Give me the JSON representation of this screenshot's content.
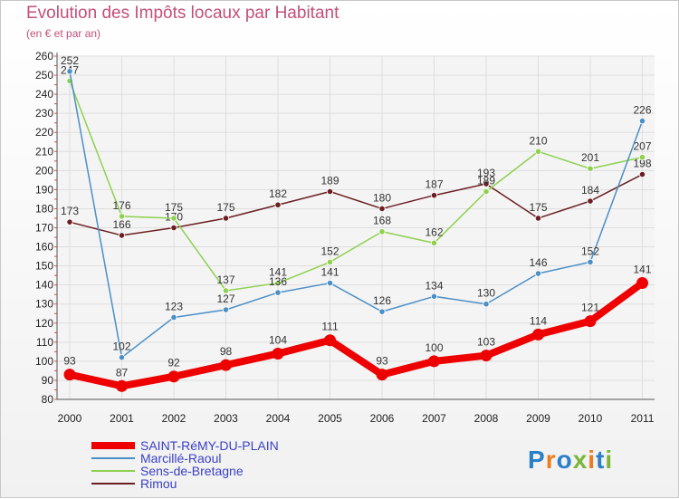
{
  "page": {
    "title": "Evolution des Impôts locaux par Habitant",
    "subtitle": "(en € et par an)"
  },
  "logo": {
    "text": "Proxiti",
    "colors": [
      "#2b7fc9",
      "#ee7c1f",
      "#2b7fc9",
      "#7ab637",
      "#ee7c1f",
      "#2b7fc9",
      "#7ab637"
    ]
  },
  "chart_data": {
    "type": "line",
    "title": "Evolution des Impôts locaux par Habitant",
    "subtitle": "(en € et par an)",
    "xlabel": "",
    "ylabel": "",
    "ylim": [
      80,
      260
    ],
    "yticks": [
      80,
      90,
      100,
      110,
      120,
      130,
      140,
      150,
      160,
      170,
      180,
      190,
      200,
      210,
      220,
      230,
      240,
      250,
      260
    ],
    "x": [
      "2000",
      "2001",
      "2002",
      "2003",
      "2004",
      "2005",
      "2006",
      "2007",
      "2008",
      "2009",
      "2010",
      "2011"
    ],
    "legend_position": "bottom-left",
    "series": [
      {
        "name": "Rimou",
        "color": "#6b1f22",
        "values": [
          173,
          166,
          170,
          175,
          182,
          189,
          180,
          187,
          193,
          175,
          184,
          198
        ]
      },
      {
        "name": "Sens-de-Bretagne",
        "color": "#8ed14f",
        "values": [
          247,
          176,
          175,
          137,
          141,
          152,
          168,
          162,
          189,
          210,
          201,
          207
        ]
      },
      {
        "name": "Marcillé-Raoul",
        "color": "#4b8fc6",
        "values": [
          252,
          102,
          123,
          127,
          136,
          141,
          126,
          134,
          130,
          146,
          152,
          226
        ]
      },
      {
        "name": "SAINT-RéMY-DU-PLAIN",
        "color": "#ee0000",
        "values": [
          93,
          87,
          92,
          98,
          104,
          111,
          93,
          100,
          103,
          114,
          121,
          141
        ]
      }
    ],
    "legend_order": [
      "SAINT-RéMY-DU-PLAIN",
      "Marcillé-Raoul",
      "Sens-de-Bretagne",
      "Rimou"
    ],
    "legend_text_colors": [
      "#3a40c8",
      "#3a40c8",
      "#3a40c8",
      "#3a40c8"
    ]
  }
}
